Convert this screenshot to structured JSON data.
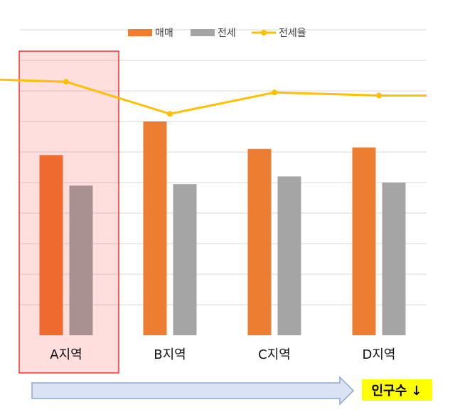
{
  "chart_data": {
    "type": "bar",
    "categories": [
      "A지역",
      "B지역",
      "C지역",
      "D지역"
    ],
    "series": [
      {
        "name": "매매",
        "type": "bar",
        "color": "#ED7D31",
        "values": [
          59,
          70,
          61,
          61.5
        ]
      },
      {
        "name": "전세",
        "type": "bar",
        "color": "#A5A5A5",
        "values": [
          49,
          49.5,
          52,
          50
        ]
      },
      {
        "name": "전세율",
        "type": "line",
        "color": "#FFC000",
        "values": [
          83,
          72.5,
          79.5,
          78.5
        ]
      }
    ],
    "highlight_color": "#FF0000",
    "highlight_category": "A지역",
    "gridlines": true,
    "legend_position": "top-center",
    "title": "",
    "xlabel": "",
    "ylabel": "",
    "ylim": [
      0,
      100
    ]
  },
  "annotation": {
    "arrow_text": "인구수 ↓",
    "arrow_color": "#DAE3F3",
    "text_background": "#FFFF00"
  }
}
